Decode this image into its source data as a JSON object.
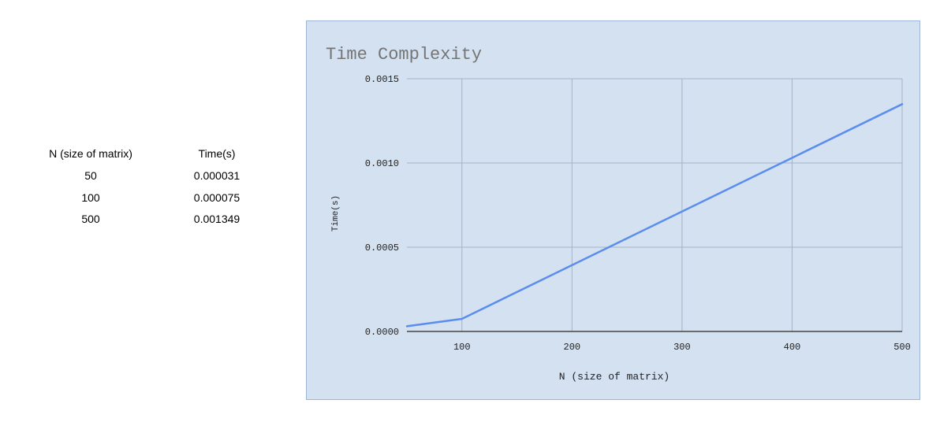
{
  "table": {
    "headers": [
      "N (size of matrix)",
      "Time(s)"
    ],
    "rows": [
      [
        "50",
        "0.000031"
      ],
      [
        "100",
        "0.000075"
      ],
      [
        "500",
        "0.001349"
      ]
    ]
  },
  "chart_data": {
    "type": "line",
    "title": "Time Complexity",
    "xlabel": "N (size of matrix)",
    "ylabel": "Time(s)",
    "x": [
      50,
      100,
      500
    ],
    "series": [
      {
        "values": [
          3.1e-05,
          7.5e-05,
          0.001349
        ]
      }
    ],
    "xlim": [
      50,
      500
    ],
    "ylim": [
      0,
      0.0015
    ],
    "xticks": [
      "100",
      "200",
      "300",
      "400",
      "500"
    ],
    "yticks": [
      "0.0000",
      "0.0005",
      "0.0010",
      "0.0015"
    ],
    "grid": true,
    "legend": "none",
    "colors": {
      "background": "#d3e1f1",
      "line": "#5b8def",
      "grid": "#a3b3c6",
      "axis": "#444444",
      "title": "#757575",
      "text": "#222222"
    }
  }
}
